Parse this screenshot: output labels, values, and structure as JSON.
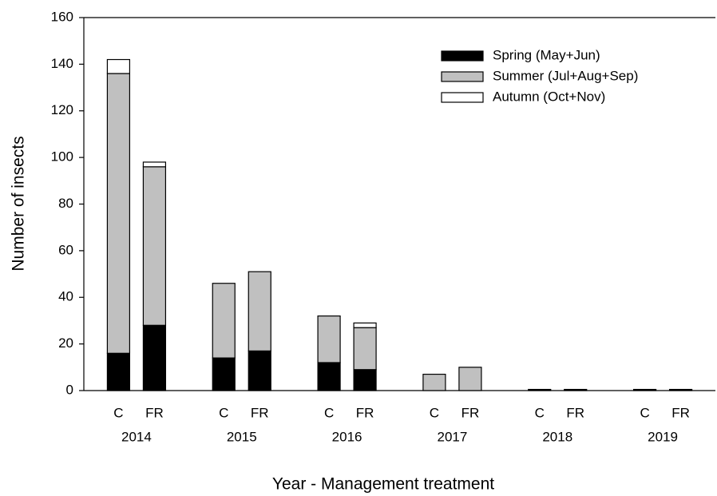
{
  "chart_data": {
    "type": "stacked_bar",
    "x_label": "Year - Management treatment",
    "y_label": "Number of insects",
    "groups": [
      "2014",
      "2015",
      "2016",
      "2017",
      "2018",
      "2019"
    ],
    "categories": [
      "C",
      "FR",
      "C",
      "FR",
      "C",
      "FR",
      "C",
      "FR",
      "C",
      "FR",
      "C",
      "FR"
    ],
    "series": [
      {
        "name": "Spring (May+Jun)",
        "color": "#000000",
        "values": [
          16,
          28,
          14,
          17,
          12,
          9,
          0,
          0,
          0.5,
          0.5,
          0.5,
          0.5
        ]
      },
      {
        "name": "Summer (Jul+Aug+Sep)",
        "color": "#c0c0c0",
        "values": [
          120,
          68,
          32,
          34,
          20,
          18,
          7,
          10,
          0,
          0,
          0,
          0
        ]
      },
      {
        "name": "Autumn (Oct+Nov)",
        "color": "#ffffff",
        "values": [
          6,
          2,
          0,
          0,
          0,
          2,
          0,
          0,
          0,
          0,
          0,
          0
        ]
      }
    ],
    "ylim": [
      0,
      160
    ],
    "yticks": [
      0,
      20,
      40,
      60,
      80,
      100,
      120,
      140,
      160
    ],
    "legend": "upper right"
  }
}
